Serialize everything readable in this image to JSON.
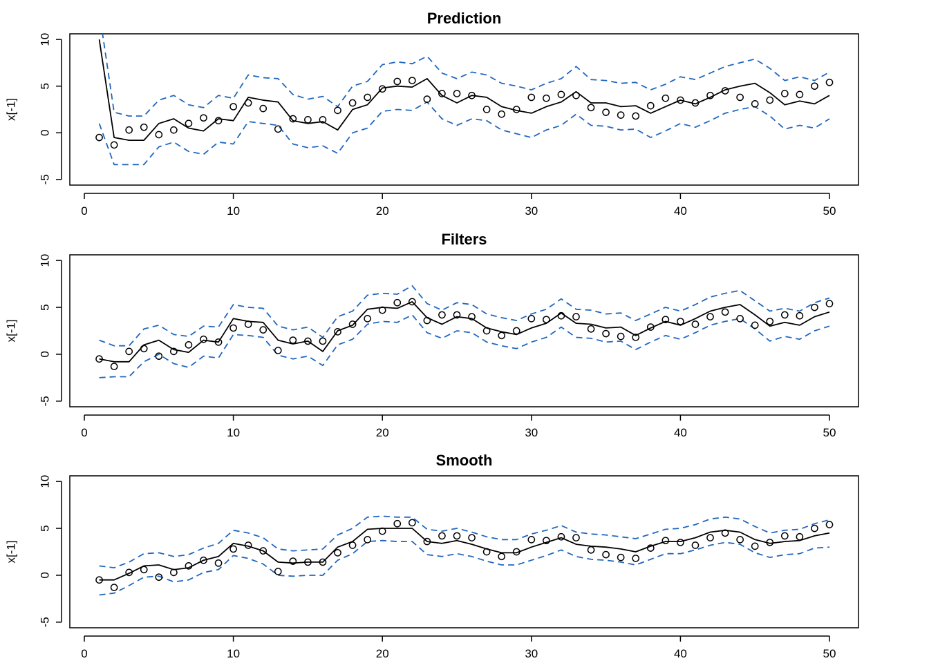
{
  "chart_data": [
    {
      "type": "line",
      "title": "Prediction",
      "xlabel": "",
      "ylabel": "x[-1]",
      "xlim": [
        0,
        50
      ],
      "ylim": [
        -5,
        10
      ],
      "xticks": [
        0,
        10,
        20,
        30,
        40,
        50
      ],
      "yticks": [
        -5,
        0,
        5,
        10
      ],
      "x": [
        1,
        2,
        3,
        4,
        5,
        6,
        7,
        8,
        9,
        10,
        11,
        12,
        13,
        14,
        15,
        16,
        17,
        18,
        19,
        20,
        21,
        22,
        23,
        24,
        25,
        26,
        27,
        28,
        29,
        30,
        31,
        32,
        33,
        34,
        35,
        36,
        37,
        38,
        39,
        40,
        41,
        42,
        43,
        44,
        45,
        46,
        47,
        48,
        49,
        50
      ],
      "observations": [
        -0.5,
        -1.3,
        0.3,
        0.6,
        -0.2,
        0.3,
        1.0,
        1.6,
        1.3,
        2.8,
        3.2,
        2.6,
        0.4,
        1.5,
        1.4,
        1.4,
        2.4,
        3.2,
        3.8,
        4.7,
        5.5,
        5.6,
        3.6,
        4.2,
        4.2,
        4.0,
        2.5,
        2.0,
        2.5,
        3.8,
        3.7,
        4.1,
        4.0,
        2.7,
        2.2,
        1.9,
        1.8,
        2.9,
        3.7,
        3.5,
        3.2,
        4.0,
        4.5,
        3.8,
        3.1,
        3.5,
        4.2,
        4.1,
        5.0,
        5.4
      ],
      "series": [
        {
          "name": "",
          "style": "solid",
          "color": "#000000",
          "values": [
            10.0,
            -0.5,
            -0.8,
            -0.8,
            1.0,
            1.5,
            0.5,
            0.2,
            1.5,
            1.3,
            3.8,
            3.5,
            3.3,
            1.3,
            1.0,
            1.2,
            0.3,
            2.5,
            3.0,
            4.8,
            5.0,
            4.9,
            5.8,
            4.0,
            3.2,
            4.0,
            3.8,
            2.8,
            2.4,
            2.1,
            2.8,
            3.3,
            4.4,
            3.2,
            3.2,
            2.8,
            2.9,
            2.1,
            2.8,
            3.5,
            3.1,
            3.8,
            4.6,
            5.0,
            5.3,
            4.3,
            3.0,
            3.4,
            3.1,
            4.0
          ]
        },
        {
          "name": "",
          "style": "dashed",
          "color": "#1f66c0",
          "values": [
            13.0,
            2.2,
            1.8,
            1.8,
            3.5,
            4.0,
            3.0,
            2.7,
            4.0,
            3.7,
            6.2,
            5.9,
            5.8,
            4.1,
            3.6,
            3.9,
            2.8,
            5.0,
            5.5,
            7.3,
            7.6,
            7.4,
            8.2,
            6.4,
            5.8,
            6.5,
            6.2,
            5.3,
            5.0,
            4.6,
            5.3,
            5.8,
            7.1,
            5.7,
            5.6,
            5.3,
            5.4,
            4.6,
            5.2,
            6.0,
            5.7,
            6.4,
            7.1,
            7.5,
            7.9,
            6.9,
            5.6,
            6.0,
            5.6,
            6.5
          ]
        },
        {
          "name": "",
          "style": "dashed",
          "color": "#1f66c0",
          "values": [
            1.0,
            -3.4,
            -3.4,
            -3.4,
            -1.5,
            -1.0,
            -2.0,
            -2.3,
            -1.0,
            -1.2,
            1.2,
            1.0,
            0.8,
            -1.2,
            -1.6,
            -1.4,
            -2.2,
            0.0,
            0.5,
            2.3,
            2.5,
            2.4,
            3.3,
            1.5,
            0.8,
            1.5,
            1.3,
            0.3,
            -0.1,
            -0.5,
            0.3,
            0.8,
            2.0,
            0.8,
            0.7,
            0.3,
            0.4,
            -0.5,
            0.2,
            1.0,
            0.6,
            1.3,
            2.1,
            2.5,
            2.8,
            1.8,
            0.4,
            0.8,
            0.5,
            1.5
          ]
        }
      ]
    },
    {
      "type": "line",
      "title": "Filters",
      "xlabel": "",
      "ylabel": "x[-1]",
      "xlim": [
        0,
        50
      ],
      "ylim": [
        -5,
        10
      ],
      "xticks": [
        0,
        10,
        20,
        30,
        40,
        50
      ],
      "yticks": [
        -5,
        0,
        5,
        10
      ],
      "x": [
        1,
        2,
        3,
        4,
        5,
        6,
        7,
        8,
        9,
        10,
        11,
        12,
        13,
        14,
        15,
        16,
        17,
        18,
        19,
        20,
        21,
        22,
        23,
        24,
        25,
        26,
        27,
        28,
        29,
        30,
        31,
        32,
        33,
        34,
        35,
        36,
        37,
        38,
        39,
        40,
        41,
        42,
        43,
        44,
        45,
        46,
        47,
        48,
        49,
        50
      ],
      "observations": [
        -0.5,
        -1.3,
        0.3,
        0.6,
        -0.2,
        0.3,
        1.0,
        1.6,
        1.3,
        2.8,
        3.2,
        2.6,
        0.4,
        1.5,
        1.4,
        1.4,
        2.4,
        3.2,
        3.8,
        4.7,
        5.5,
        5.6,
        3.6,
        4.2,
        4.2,
        4.0,
        2.5,
        2.0,
        2.5,
        3.8,
        3.7,
        4.1,
        4.0,
        2.7,
        2.2,
        1.9,
        1.8,
        2.9,
        3.7,
        3.5,
        3.2,
        4.0,
        4.5,
        3.8,
        3.1,
        3.5,
        4.2,
        4.1,
        5.0,
        5.4
      ],
      "series": [
        {
          "name": "",
          "style": "solid",
          "color": "#000000",
          "values": [
            -0.5,
            -0.8,
            -0.8,
            1.0,
            1.5,
            0.5,
            0.2,
            1.5,
            1.3,
            3.8,
            3.5,
            3.4,
            1.5,
            1.1,
            1.4,
            0.3,
            2.5,
            3.1,
            4.8,
            5.0,
            4.9,
            5.6,
            3.9,
            3.2,
            4.0,
            3.8,
            2.8,
            2.4,
            2.1,
            2.8,
            3.3,
            4.4,
            3.3,
            3.2,
            2.8,
            2.9,
            2.0,
            2.8,
            3.5,
            3.1,
            3.8,
            4.6,
            5.0,
            5.3,
            4.2,
            3.0,
            3.4,
            3.1,
            4.0,
            4.5
          ]
        },
        {
          "name": "",
          "style": "dashed",
          "color": "#1f66c0",
          "values": [
            1.5,
            0.9,
            0.9,
            2.7,
            3.1,
            2.1,
            1.9,
            3.0,
            2.9,
            5.3,
            5.0,
            4.9,
            3.0,
            2.6,
            2.9,
            1.8,
            4.0,
            4.6,
            6.3,
            6.5,
            6.4,
            7.3,
            5.4,
            4.7,
            5.5,
            5.3,
            4.3,
            3.9,
            3.6,
            4.3,
            4.8,
            5.9,
            4.8,
            4.7,
            4.3,
            4.4,
            3.6,
            4.3,
            5.0,
            4.6,
            5.3,
            6.1,
            6.5,
            6.8,
            5.7,
            4.6,
            4.9,
            4.6,
            5.5,
            6.0
          ]
        },
        {
          "name": "",
          "style": "dashed",
          "color": "#1f66c0",
          "values": [
            -2.5,
            -2.4,
            -2.4,
            -0.8,
            0.0,
            -1.0,
            -1.4,
            -0.2,
            -0.4,
            2.1,
            2.0,
            1.8,
            -0.1,
            -0.5,
            -0.2,
            -1.2,
            1.0,
            1.6,
            3.2,
            3.5,
            3.4,
            4.2,
            2.3,
            1.7,
            2.5,
            2.3,
            1.3,
            0.9,
            0.6,
            1.3,
            1.8,
            2.9,
            1.8,
            1.7,
            1.3,
            1.4,
            0.5,
            1.3,
            2.0,
            1.6,
            2.3,
            3.1,
            3.5,
            3.8,
            2.7,
            1.4,
            1.9,
            1.6,
            2.5,
            3.0
          ]
        }
      ]
    },
    {
      "type": "line",
      "title": "Smooth",
      "xlabel": "",
      "ylabel": "x[-1]",
      "xlim": [
        0,
        50
      ],
      "ylim": [
        -5,
        10
      ],
      "xticks": [
        0,
        10,
        20,
        30,
        40,
        50
      ],
      "yticks": [
        -5,
        0,
        5,
        10
      ],
      "x": [
        1,
        2,
        3,
        4,
        5,
        6,
        7,
        8,
        9,
        10,
        11,
        12,
        13,
        14,
        15,
        16,
        17,
        18,
        19,
        20,
        21,
        22,
        23,
        24,
        25,
        26,
        27,
        28,
        29,
        30,
        31,
        32,
        33,
        34,
        35,
        36,
        37,
        38,
        39,
        40,
        41,
        42,
        43,
        44,
        45,
        46,
        47,
        48,
        49,
        50
      ],
      "observations": [
        -0.5,
        -1.3,
        0.3,
        0.6,
        -0.2,
        0.3,
        1.0,
        1.6,
        1.3,
        2.8,
        3.2,
        2.6,
        0.4,
        1.5,
        1.4,
        1.4,
        2.4,
        3.2,
        3.8,
        4.7,
        5.5,
        5.6,
        3.6,
        4.2,
        4.2,
        4.0,
        2.5,
        2.0,
        2.5,
        3.8,
        3.7,
        4.1,
        4.0,
        2.7,
        2.2,
        1.9,
        1.8,
        2.9,
        3.7,
        3.5,
        3.2,
        4.0,
        4.5,
        3.8,
        3.1,
        3.5,
        4.2,
        4.1,
        5.0,
        5.4
      ],
      "series": [
        {
          "name": "",
          "style": "solid",
          "color": "#000000",
          "values": [
            -0.5,
            -0.5,
            0.2,
            1.0,
            1.1,
            0.6,
            0.8,
            1.6,
            2.0,
            3.4,
            3.1,
            2.6,
            1.4,
            1.3,
            1.4,
            1.4,
            3.0,
            3.6,
            4.9,
            5.0,
            5.0,
            5.0,
            3.6,
            3.4,
            3.7,
            3.3,
            2.8,
            2.4,
            2.4,
            3.0,
            3.5,
            4.0,
            3.3,
            3.1,
            3.0,
            2.8,
            2.5,
            3.1,
            3.6,
            3.6,
            4.0,
            4.6,
            4.8,
            4.6,
            3.8,
            3.4,
            3.6,
            3.7,
            4.2,
            4.5
          ]
        },
        {
          "name": "",
          "style": "dashed",
          "color": "#1f66c0",
          "values": [
            1.0,
            0.8,
            1.4,
            2.3,
            2.4,
            2.0,
            2.2,
            2.9,
            3.4,
            4.8,
            4.5,
            4.0,
            2.8,
            2.6,
            2.7,
            2.8,
            4.3,
            5.0,
            6.2,
            6.3,
            6.2,
            6.2,
            4.9,
            4.7,
            5.0,
            4.6,
            4.1,
            3.8,
            3.8,
            4.4,
            4.8,
            5.3,
            4.6,
            4.4,
            4.3,
            4.1,
            3.9,
            4.4,
            4.9,
            5.0,
            5.4,
            6.0,
            6.2,
            6.0,
            5.2,
            4.5,
            4.8,
            4.9,
            5.5,
            5.9
          ]
        },
        {
          "name": "",
          "style": "dashed",
          "color": "#1f66c0",
          "values": [
            -2.1,
            -1.9,
            -1.1,
            -0.2,
            -0.1,
            -0.7,
            -0.5,
            0.3,
            0.6,
            2.1,
            1.8,
            1.2,
            0.0,
            -0.1,
            0.0,
            0.0,
            1.6,
            2.3,
            3.6,
            3.7,
            3.6,
            3.6,
            2.2,
            2.0,
            2.3,
            2.0,
            1.5,
            1.1,
            1.1,
            1.6,
            2.1,
            2.7,
            2.0,
            1.7,
            1.6,
            1.4,
            1.1,
            1.7,
            2.3,
            2.3,
            2.7,
            3.2,
            3.5,
            3.3,
            2.4,
            1.9,
            2.2,
            2.3,
            2.9,
            3.0
          ]
        }
      ]
    }
  ]
}
